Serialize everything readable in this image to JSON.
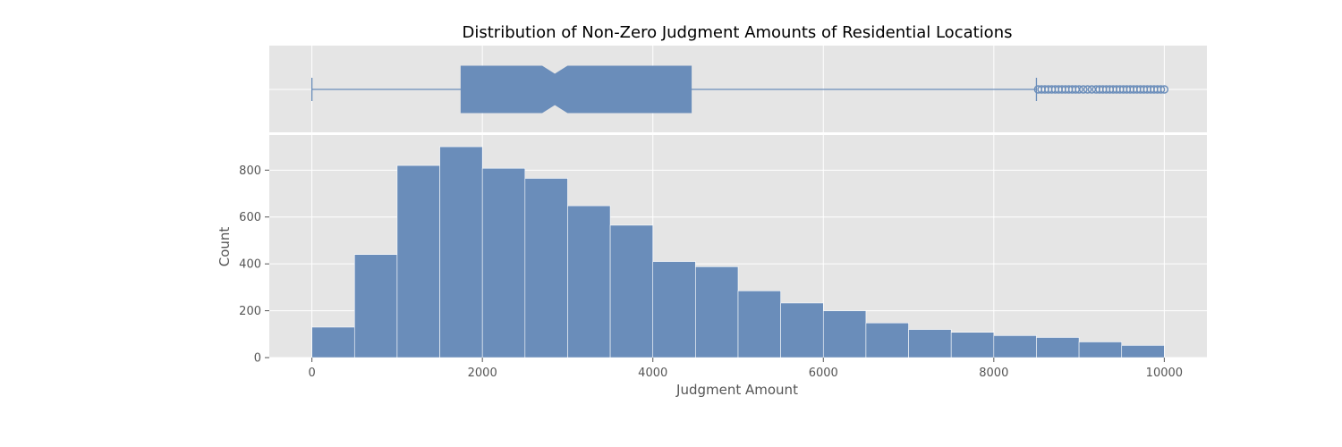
{
  "chart_data": {
    "type": "bar",
    "title": "Distribution of Non-Zero Judgment Amounts of Residential Locations",
    "xlabel": "Judgment Amount",
    "ylabel": "Count",
    "xlim": [
      -500,
      10500
    ],
    "ylim": [
      0,
      950
    ],
    "grid": true,
    "legend": "none",
    "bar_color": "#6a8dba",
    "background_color": "#e5e5e5",
    "x_ticks": [
      0,
      2000,
      4000,
      6000,
      8000,
      10000
    ],
    "y_ticks": [
      0,
      200,
      400,
      600,
      800
    ],
    "bins": [
      {
        "start": 0,
        "end": 500,
        "count": 130
      },
      {
        "start": 500,
        "end": 1000,
        "count": 440
      },
      {
        "start": 1000,
        "end": 1500,
        "count": 820
      },
      {
        "start": 1500,
        "end": 2000,
        "count": 900
      },
      {
        "start": 2000,
        "end": 2500,
        "count": 808
      },
      {
        "start": 2500,
        "end": 3000,
        "count": 765
      },
      {
        "start": 3000,
        "end": 3500,
        "count": 648
      },
      {
        "start": 3500,
        "end": 4000,
        "count": 565
      },
      {
        "start": 4000,
        "end": 4500,
        "count": 410
      },
      {
        "start": 4500,
        "end": 5000,
        "count": 388
      },
      {
        "start": 5000,
        "end": 5500,
        "count": 285
      },
      {
        "start": 5500,
        "end": 6000,
        "count": 233
      },
      {
        "start": 6000,
        "end": 6500,
        "count": 200
      },
      {
        "start": 6500,
        "end": 7000,
        "count": 148
      },
      {
        "start": 7000,
        "end": 7500,
        "count": 120
      },
      {
        "start": 7500,
        "end": 8000,
        "count": 108
      },
      {
        "start": 8000,
        "end": 8500,
        "count": 94
      },
      {
        "start": 8500,
        "end": 9000,
        "count": 86
      },
      {
        "start": 9000,
        "end": 9500,
        "count": 67
      },
      {
        "start": 9500,
        "end": 10000,
        "count": 52
      }
    ],
    "boxplot": {
      "whisker_low": 0,
      "q1": 1750,
      "median": 2850,
      "q3": 4450,
      "whisker_high": 8500,
      "notch_low": 2700,
      "notch_high": 3000,
      "outliers": [
        8520,
        8560,
        8600,
        8640,
        8680,
        8720,
        8760,
        8800,
        8840,
        8880,
        8920,
        8960,
        9000,
        9050,
        9100,
        9150,
        9200,
        9240,
        9280,
        9320,
        9360,
        9400,
        9440,
        9480,
        9520,
        9560,
        9600,
        9640,
        9680,
        9720,
        9760,
        9800,
        9840,
        9880,
        9920,
        9960,
        10000
      ]
    }
  }
}
